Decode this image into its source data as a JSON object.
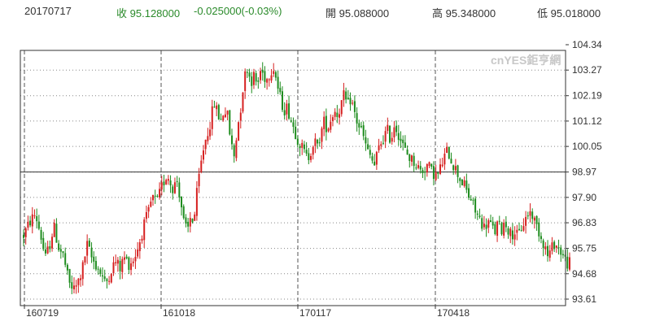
{
  "header": {
    "date": "20170717",
    "close_label": "收",
    "close_value": "95.128000",
    "change_value": "-0.025000(-0.03%)",
    "open_label": "開",
    "open_value": "95.088000",
    "high_label": "高",
    "high_value": "95.348000",
    "low_label": "低",
    "low_value": "95.018000"
  },
  "watermark": "cnYES鉅亨網",
  "colors": {
    "up": "#d62020",
    "down": "#1e8c1e",
    "grid": "#555555",
    "frame": "#333333"
  },
  "chart_data": {
    "type": "candlestick",
    "y_ticks": [
      "104.34",
      "103.27",
      "102.19",
      "101.12",
      "100.05",
      "98.97",
      "97.90",
      "96.83",
      "95.75",
      "94.68",
      "93.61"
    ],
    "x_ticks": [
      "160719",
      "161018",
      "170117",
      "170418"
    ],
    "ylim": [
      93.61,
      104.34
    ],
    "reference_line": 98.97,
    "price_path": [
      [
        0,
        96.3
      ],
      [
        8,
        96.9
      ],
      [
        14,
        97.2
      ],
      [
        20,
        96.4
      ],
      [
        26,
        95.3
      ],
      [
        32,
        96.0
      ],
      [
        36,
        96.7
      ],
      [
        42,
        95.8
      ],
      [
        48,
        95.4
      ],
      [
        54,
        94.3
      ],
      [
        60,
        94.0
      ],
      [
        64,
        94.2
      ],
      [
        70,
        94.8
      ],
      [
        76,
        95.9
      ],
      [
        82,
        95.3
      ],
      [
        88,
        95.0
      ],
      [
        94,
        94.6
      ],
      [
        98,
        94.2
      ],
      [
        104,
        94.8
      ],
      [
        110,
        95.2
      ],
      [
        116,
        94.9
      ],
      [
        120,
        95.4
      ],
      [
        126,
        95.1
      ],
      [
        132,
        95.3
      ],
      [
        138,
        95.9
      ],
      [
        144,
        96.7
      ],
      [
        150,
        97.3
      ],
      [
        154,
        97.9
      ],
      [
        160,
        97.7
      ],
      [
        166,
        98.4
      ],
      [
        172,
        98.9
      ],
      [
        178,
        98.3
      ],
      [
        184,
        98.6
      ],
      [
        188,
        97.8
      ],
      [
        192,
        96.8
      ],
      [
        196,
        96.4
      ],
      [
        200,
        97.1
      ],
      [
        204,
        96.9
      ],
      [
        208,
        98.2
      ],
      [
        212,
        99.2
      ],
      [
        216,
        100.1
      ],
      [
        220,
        100.6
      ],
      [
        224,
        101.1
      ],
      [
        228,
        101.9
      ],
      [
        232,
        101.5
      ],
      [
        236,
        101.1
      ],
      [
        240,
        101.6
      ],
      [
        244,
        101.4
      ],
      [
        248,
        100.3
      ],
      [
        252,
        99.6
      ],
      [
        256,
        100.8
      ],
      [
        260,
        101.7
      ],
      [
        264,
        102.9
      ],
      [
        268,
        103.4
      ],
      [
        272,
        102.8
      ],
      [
        276,
        103.0
      ],
      [
        280,
        102.6
      ],
      [
        284,
        103.3
      ],
      [
        288,
        103.0
      ],
      [
        292,
        102.9
      ],
      [
        296,
        103.3
      ],
      [
        300,
        103.4
      ],
      [
        304,
        102.6
      ],
      [
        308,
        102.0
      ],
      [
        312,
        101.6
      ],
      [
        316,
        101.7
      ],
      [
        320,
        101.2
      ],
      [
        324,
        100.8
      ],
      [
        328,
        100.4
      ],
      [
        332,
        100.1
      ],
      [
        336,
        99.8
      ],
      [
        340,
        99.5
      ],
      [
        344,
        99.9
      ],
      [
        348,
        100.3
      ],
      [
        352,
        100.0
      ],
      [
        356,
        100.6
      ],
      [
        360,
        101.1
      ],
      [
        364,
        100.8
      ],
      [
        368,
        101.2
      ],
      [
        372,
        101.6
      ],
      [
        376,
        101.4
      ],
      [
        380,
        101.8
      ],
      [
        384,
        102.2
      ],
      [
        388,
        101.7
      ],
      [
        392,
        102.1
      ],
      [
        396,
        101.5
      ],
      [
        400,
        101.0
      ],
      [
        404,
        100.8
      ],
      [
        408,
        100.3
      ],
      [
        412,
        99.8
      ],
      [
        416,
        99.6
      ],
      [
        420,
        99.2
      ],
      [
        424,
        99.8
      ],
      [
        428,
        100.2
      ],
      [
        432,
        100.5
      ],
      [
        436,
        100.7
      ],
      [
        440,
        100.3
      ],
      [
        444,
        101.0
      ],
      [
        448,
        100.7
      ],
      [
        452,
        100.3
      ],
      [
        456,
        99.9
      ],
      [
        460,
        99.7
      ],
      [
        464,
        99.5
      ],
      [
        468,
        99.4
      ],
      [
        472,
        99.2
      ],
      [
        476,
        99.0
      ],
      [
        480,
        99.1
      ],
      [
        484,
        99.3
      ],
      [
        488,
        99.0
      ],
      [
        492,
        98.9
      ],
      [
        496,
        98.8
      ],
      [
        500,
        99.2
      ],
      [
        504,
        99.6
      ],
      [
        508,
        99.9
      ],
      [
        512,
        99.5
      ],
      [
        516,
        99.2
      ],
      [
        520,
        98.9
      ],
      [
        524,
        98.6
      ],
      [
        528,
        98.4
      ],
      [
        532,
        98.0
      ],
      [
        536,
        97.8
      ],
      [
        540,
        97.4
      ],
      [
        544,
        97.1
      ],
      [
        548,
        96.9
      ],
      [
        552,
        96.6
      ],
      [
        556,
        96.9
      ],
      [
        560,
        96.7
      ],
      [
        564,
        96.4
      ],
      [
        568,
        96.8
      ],
      [
        572,
        96.5
      ],
      [
        576,
        96.9
      ],
      [
        580,
        96.6
      ],
      [
        584,
        96.3
      ],
      [
        588,
        96.5
      ],
      [
        592,
        96.2
      ],
      [
        596,
        96.6
      ],
      [
        600,
        96.9
      ],
      [
        604,
        97.2
      ],
      [
        608,
        97.3
      ],
      [
        612,
        96.9
      ],
      [
        616,
        96.6
      ],
      [
        620,
        96.2
      ],
      [
        624,
        95.9
      ],
      [
        628,
        95.4
      ],
      [
        632,
        95.7
      ],
      [
        636,
        96.0
      ],
      [
        640,
        95.8
      ],
      [
        644,
        95.6
      ],
      [
        648,
        95.3
      ],
      [
        652,
        95.1
      ],
      [
        654,
        95.13
      ]
    ],
    "bar_count": 250
  }
}
